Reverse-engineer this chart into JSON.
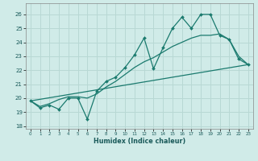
{
  "xlabel": "Humidex (Indice chaleur)",
  "xlim": [
    -0.5,
    23.5
  ],
  "ylim": [
    17.8,
    26.8
  ],
  "yticks": [
    18,
    19,
    20,
    21,
    22,
    23,
    24,
    25,
    26
  ],
  "xticks": [
    0,
    1,
    2,
    3,
    4,
    5,
    6,
    7,
    8,
    9,
    10,
    11,
    12,
    13,
    14,
    15,
    16,
    17,
    18,
    19,
    20,
    21,
    22,
    23
  ],
  "bg_color": "#d0ebe8",
  "grid_color": "#b8d8d4",
  "line_color": "#1a7a6e",
  "s1x": [
    0,
    1,
    2,
    3,
    4,
    5,
    6,
    7,
    8,
    9,
    10,
    11,
    12,
    13,
    14,
    15,
    16,
    17,
    18,
    19,
    20,
    21,
    22,
    23
  ],
  "s1y": [
    19.8,
    19.3,
    19.5,
    19.2,
    20.0,
    20.0,
    18.5,
    20.5,
    21.2,
    21.5,
    22.2,
    23.1,
    24.3,
    22.1,
    23.6,
    25.0,
    25.8,
    25.0,
    26.0,
    26.0,
    24.5,
    24.2,
    22.8,
    22.4
  ],
  "s2x": [
    0,
    1,
    2,
    3,
    4,
    5,
    6,
    7,
    8,
    9,
    10,
    11,
    12,
    13,
    14,
    15,
    16,
    17,
    18,
    19,
    20,
    21,
    22,
    23
  ],
  "s2y": [
    19.8,
    19.4,
    19.6,
    19.9,
    20.1,
    20.1,
    20.0,
    20.3,
    20.8,
    21.2,
    21.7,
    22.2,
    22.6,
    22.9,
    23.3,
    23.7,
    24.0,
    24.3,
    24.5,
    24.5,
    24.6,
    24.2,
    23.0,
    22.4
  ],
  "s3x": [
    0,
    23
  ],
  "s3y": [
    19.8,
    22.4
  ]
}
